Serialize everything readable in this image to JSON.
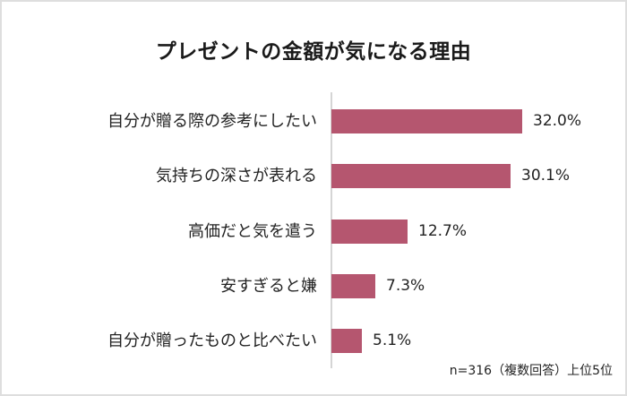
{
  "title": "プレゼントの金額が気になる理由",
  "footnote": "n=316（複数回答）上位5位",
  "colors": {
    "bar": "#b5566f",
    "axis": "#d5d5d5",
    "border": "#dedede"
  },
  "rows": [
    {
      "label": "自分が贈る際の参考にしたい",
      "value": 32.0,
      "value_label": "32.0%"
    },
    {
      "label": "気持ちの深さが表れる",
      "value": 30.1,
      "value_label": "30.1%"
    },
    {
      "label": "高価だと気を遣う",
      "value": 12.7,
      "value_label": "12.7%"
    },
    {
      "label": "安すぎると嫌",
      "value": 7.3,
      "value_label": "7.3%"
    },
    {
      "label": "自分が贈ったものと比べたい",
      "value": 5.1,
      "value_label": "5.1%"
    }
  ],
  "chart_data": {
    "type": "bar",
    "orientation": "horizontal",
    "title": "プレゼントの金額が気になる理由",
    "categories": [
      "自分が贈る際の参考にしたい",
      "気持ちの深さが表れる",
      "高価だと気を遣う",
      "安すぎると嫌",
      "自分が贈ったものと比べたい"
    ],
    "values": [
      32.0,
      30.1,
      12.7,
      7.3,
      5.1
    ],
    "data_labels": [
      "32.0%",
      "30.1%",
      "12.7%",
      "7.3%",
      "5.1%"
    ],
    "unit": "%",
    "xlabel": "",
    "ylabel": "",
    "grid": false,
    "legend": null,
    "annotation": "n=316（複数回答）上位5位"
  }
}
